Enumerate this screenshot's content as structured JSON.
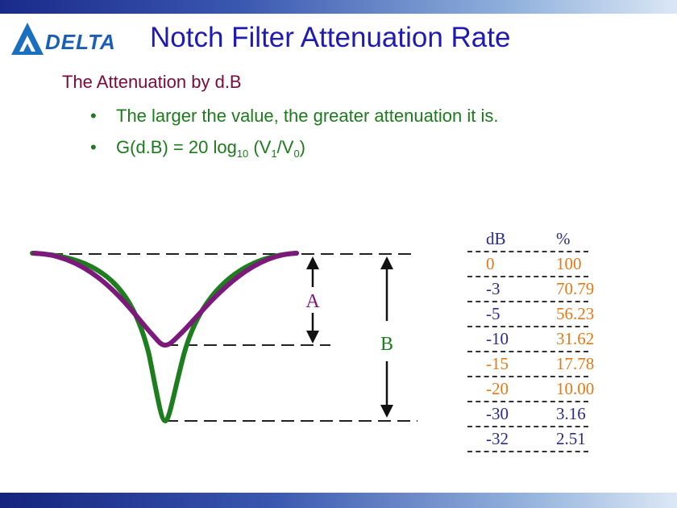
{
  "header": {
    "logo_text": "DELTA",
    "title": "Notch Filter Attenuation Rate"
  },
  "content": {
    "heading": "The Attenuation by d.B",
    "bullet1": "The larger the value, the greater attenuation it is.",
    "bullet2": {
      "prefix": "G(d.B) = 20 log",
      "log_sub": "10",
      "mid": " (V",
      "v1_sub": "1",
      "slash": "/V",
      "v0_sub": "0",
      "suffix": ")"
    }
  },
  "diagram": {
    "label_a": "A",
    "label_b": "B",
    "colors": {
      "curve_a": "#7b1a7b",
      "curve_b": "#1e7d1e"
    }
  },
  "table": {
    "headers": [
      "dB",
      "%"
    ],
    "rows": [
      [
        "0",
        "100"
      ],
      [
        "-3",
        "70.79"
      ],
      [
        "-5",
        "56.23"
      ],
      [
        "-10",
        "31.62"
      ],
      [
        "-15",
        "17.78"
      ],
      [
        "-20",
        "10.00"
      ],
      [
        "-30",
        "3.16"
      ],
      [
        "-32",
        "2.51"
      ]
    ]
  }
}
